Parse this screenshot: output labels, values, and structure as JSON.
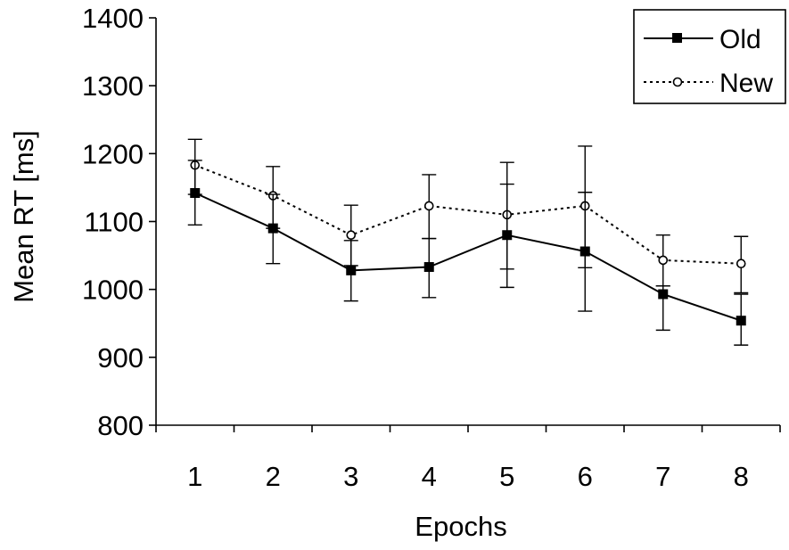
{
  "chart_data": {
    "type": "line",
    "title": "",
    "xlabel": "Epochs",
    "ylabel": "Mean RT [ms]",
    "categories": [
      "1",
      "2",
      "3",
      "4",
      "5",
      "6",
      "7",
      "8"
    ],
    "ylim": [
      800,
      1400
    ],
    "yticks": [
      800,
      900,
      1000,
      1100,
      1200,
      1300,
      1400
    ],
    "grid": false,
    "legend_position": "top-right",
    "series": [
      {
        "name": "Old",
        "line_style": "solid",
        "marker": "filled-square",
        "color": "#000000",
        "values": [
          1142,
          1090,
          1028,
          1033,
          1080,
          1056,
          993,
          954
        ],
        "error": [
          [
            1095,
            1190
          ],
          [
            1038,
            1140
          ],
          [
            983,
            1072
          ],
          [
            988,
            1075
          ],
          [
            1003,
            1155
          ],
          [
            968,
            1143
          ],
          [
            940,
            1005
          ],
          [
            918,
            993
          ]
        ]
      },
      {
        "name": "New",
        "line_style": "dotted",
        "marker": "open-circle",
        "color": "#000000",
        "values": [
          1183,
          1138,
          1080,
          1123,
          1110,
          1123,
          1043,
          1038
        ],
        "error": [
          [
            1140,
            1221
          ],
          [
            1090,
            1181
          ],
          [
            1035,
            1124
          ],
          [
            1075,
            1169
          ],
          [
            1030,
            1187
          ],
          [
            1032,
            1211
          ],
          [
            1005,
            1080
          ],
          [
            995,
            1078
          ]
        ]
      }
    ]
  }
}
